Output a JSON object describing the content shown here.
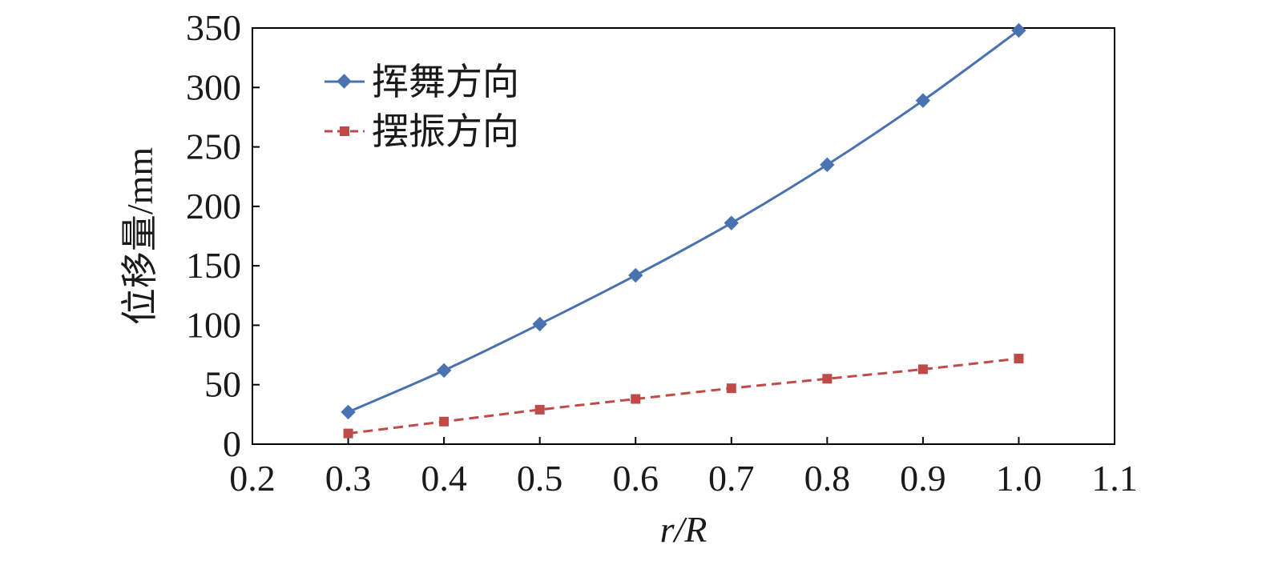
{
  "chart_data": {
    "type": "line",
    "x": [
      0.3,
      0.4,
      0.5,
      0.6,
      0.7,
      0.8,
      0.9,
      1.0
    ],
    "series": [
      {
        "name": "挥舞方向",
        "values": [
          27,
          62,
          101,
          142,
          186,
          235,
          289,
          348
        ],
        "color": "#4a72b0",
        "marker": "diamond",
        "line_style": "solid"
      },
      {
        "name": "摆振方向",
        "values": [
          9,
          19,
          29,
          38,
          47,
          55,
          63,
          72
        ],
        "color": "#be4b48",
        "marker": "square",
        "line_style": "dashed"
      }
    ],
    "xlabel": "r/R",
    "ylabel": "位移量/mm",
    "xlim": [
      0.2,
      1.1
    ],
    "ylim": [
      0,
      350
    ],
    "x_ticks": [
      "0.2",
      "0.3",
      "0.4",
      "0.5",
      "0.6",
      "0.7",
      "0.8",
      "0.9",
      "1.0",
      "1.1"
    ],
    "y_ticks": [
      "0",
      "50",
      "100",
      "150",
      "200",
      "250",
      "300",
      "350"
    ],
    "grid": false,
    "legend_position": "top-left"
  }
}
